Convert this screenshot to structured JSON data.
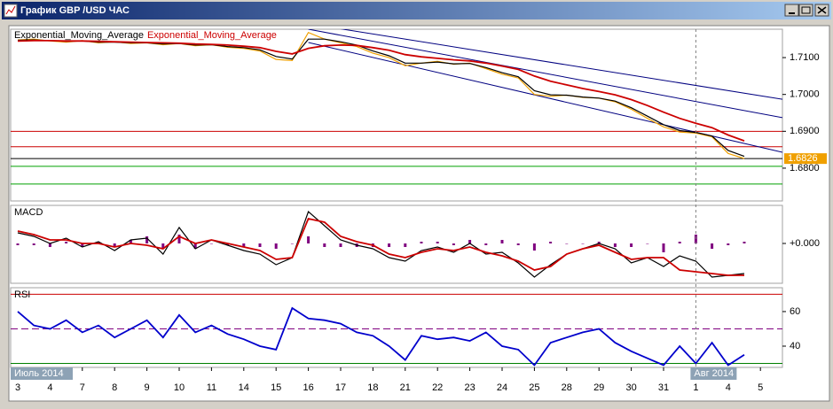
{
  "window": {
    "title": "График GBP /USD ЧАС"
  },
  "chart_data": [
    {
      "type": "line",
      "categories": [
        "3",
        null,
        "4",
        null,
        "7",
        null,
        "8",
        null,
        "9",
        null,
        "10",
        null,
        "11",
        null,
        "14",
        null,
        "15",
        null,
        "16",
        null,
        "17",
        null,
        "18",
        null,
        "21",
        null,
        "22",
        null,
        "23",
        null,
        "24",
        null,
        "25",
        null,
        "28",
        null,
        "29",
        null,
        "30",
        null,
        "31",
        null,
        "1",
        null,
        "4",
        null,
        "5",
        null
      ],
      "month_labels": [
        "Июль 2014",
        null,
        null,
        null,
        null,
        null,
        null,
        null,
        null,
        null,
        null,
        null,
        null,
        null,
        null,
        null,
        null,
        null,
        null,
        null,
        null,
        null,
        null,
        null,
        null,
        null,
        null,
        null,
        null,
        null,
        null,
        null,
        null,
        null,
        null,
        null,
        null,
        null,
        null,
        null,
        null,
        null,
        "Авг 2014",
        null,
        null,
        null,
        null,
        null
      ],
      "ylim": [
        1.6711,
        1.7177
      ],
      "yticks": [
        {
          "value": 1.71,
          "label": "1.7100"
        },
        {
          "value": 1.7,
          "label": "1.7000"
        },
        {
          "value": 1.69,
          "label": "1.6900"
        },
        {
          "value": 1.68,
          "label": "1.6800"
        }
      ],
      "series": [
        {
          "color": "#f0a000",
          "values": [
            1.7148,
            1.715,
            1.7145,
            1.7142,
            1.7146,
            1.714,
            1.7143,
            1.7138,
            1.714,
            1.7135,
            1.7138,
            1.7132,
            1.7135,
            1.7128,
            1.7125,
            1.7118,
            1.7095,
            1.7092,
            1.7168,
            1.715,
            1.714,
            1.713,
            1.7112,
            1.71,
            1.7078,
            1.7085,
            1.709,
            1.7082,
            1.7085,
            1.707,
            1.7055,
            1.7045,
            1.7,
            1.6995,
            1.6998,
            1.6992,
            1.699,
            1.698,
            1.696,
            1.6935,
            1.6912,
            1.6898,
            1.6895,
            1.6885,
            1.684,
            1.6826,
            null,
            null
          ]
        },
        {
          "name": "Exponential_Moving_Average",
          "color": "#000000",
          "values": [
            1.7147,
            1.7148,
            1.7146,
            1.7144,
            1.7145,
            1.7142,
            1.7142,
            1.714,
            1.714,
            1.7137,
            1.7138,
            1.7134,
            1.7135,
            1.713,
            1.7127,
            1.7121,
            1.7103,
            1.7096,
            1.715,
            1.715,
            1.7143,
            1.7134,
            1.7118,
            1.7105,
            1.7085,
            1.7085,
            1.7088,
            1.7083,
            1.7084,
            1.7073,
            1.7059,
            1.7048,
            1.701,
            1.6999,
            1.6998,
            1.6993,
            1.699,
            1.6982,
            1.6964,
            1.6941,
            1.6918,
            1.6902,
            1.6897,
            1.6887,
            1.6848,
            1.6832,
            null,
            null
          ]
        },
        {
          "name": "Exponential_Moving_Average",
          "color": "#cc0000",
          "values": [
            1.7145,
            1.7146,
            1.7146,
            1.7145,
            1.7145,
            1.7144,
            1.7143,
            1.7142,
            1.7141,
            1.714,
            1.7139,
            1.7137,
            1.7136,
            1.7134,
            1.7131,
            1.7127,
            1.7117,
            1.711,
            1.7125,
            1.7132,
            1.7134,
            1.7133,
            1.7127,
            1.712,
            1.7108,
            1.7102,
            1.7098,
            1.7094,
            1.7091,
            1.7085,
            1.7077,
            1.7068,
            1.705,
            1.7036,
            1.7026,
            1.7016,
            1.7008,
            1.6999,
            1.6986,
            1.697,
            1.6952,
            1.6935,
            1.6922,
            1.691,
            1.689,
            1.6874,
            null,
            null
          ]
        }
      ],
      "channel_lines": [
        {
          "start": 1.7192,
          "end": 1.6987,
          "color": "#000080"
        },
        {
          "start": 1.7177,
          "end": 1.6937,
          "color": "#000080"
        },
        {
          "start": 1.7141,
          "end": 1.6843,
          "color": "#000080"
        }
      ],
      "levels": [
        {
          "value": 1.69,
          "color": "#cc0000"
        },
        {
          "value": 1.6858,
          "color": "#cc0000"
        },
        {
          "value": 1.6805,
          "color": "#00a000"
        },
        {
          "value": 1.6757,
          "color": "#00a000"
        }
      ],
      "current_price": 1.6826
    },
    {
      "type": "line",
      "title": "MACD",
      "ylim": [
        -0.00225,
        0.00215
      ],
      "yticks": [
        {
          "value": 0,
          "label": "+0.000"
        }
      ],
      "series": [
        {
          "kind": "histogram",
          "color": "#800080",
          "values": [
            -0.0001,
            -0.0001,
            -0.0002,
            0.0001,
            -0.0002,
            0.0001,
            -0.0002,
            0.0002,
            0.0004,
            -0.0003,
            0.0005,
            -0.0003,
            0.0,
            -0.0001,
            -0.0002,
            -0.0002,
            -0.0003,
            0.0,
            0.0004,
            -0.0002,
            -0.0002,
            -0.0002,
            -0.0002,
            -0.0002,
            -0.0002,
            0.0001,
            0.0001,
            -0.0001,
            0.0002,
            -0.0001,
            0.0002,
            -0.0001,
            -0.0004,
            0.0001,
            0.0,
            0.0,
            0.0001,
            -0.0002,
            -0.0002,
            0.0,
            -0.0005,
            0.0001,
            0.0005,
            -0.0003,
            -0.0001,
            0.0001,
            null,
            null
          ]
        },
        {
          "color": "#000000",
          "values": [
            0.0006,
            0.0004,
            0.0,
            0.0003,
            -0.0002,
            0.0001,
            -0.0004,
            0.0002,
            0.0003,
            -0.0006,
            0.0009,
            -0.0003,
            0.0002,
            -0.0001,
            -0.0004,
            -0.0006,
            -0.0012,
            -0.0008,
            0.0018,
            0.001,
            0.0002,
            -0.0001,
            -0.0003,
            -0.0008,
            -0.001,
            -0.0004,
            -0.0002,
            -0.0005,
            0.0,
            -0.0006,
            -0.0005,
            -0.0011,
            -0.0019,
            -0.0012,
            -0.0006,
            -0.0003,
            0.0,
            -0.0003,
            -0.0011,
            -0.0008,
            -0.0013,
            -0.0007,
            -0.001,
            -0.0019,
            -0.0018,
            -0.0017,
            null,
            null
          ]
        },
        {
          "color": "#cc0000",
          "values": [
            0.0007,
            0.0005,
            0.0002,
            0.0002,
            0.0,
            0.0,
            -0.0002,
            0.0,
            -0.0001,
            -0.0003,
            0.0004,
            0.0,
            0.0002,
            0.0,
            -0.0002,
            -0.0004,
            -0.0009,
            -0.0008,
            0.0014,
            0.0012,
            0.0004,
            0.0001,
            -0.0001,
            -0.0006,
            -0.0008,
            -0.0005,
            -0.0003,
            -0.0004,
            -0.0002,
            -0.0005,
            -0.0007,
            -0.001,
            -0.0015,
            -0.0013,
            -0.0006,
            -0.0003,
            -0.0001,
            -0.0005,
            -0.0009,
            -0.0008,
            -0.0008,
            -0.0015,
            -0.0016,
            -0.0017,
            -0.0018,
            -0.0018,
            null,
            null
          ]
        }
      ]
    },
    {
      "type": "line",
      "title": "RSI",
      "ylim": [
        27.7,
        73.8
      ],
      "yticks": [
        60,
        40
      ],
      "levels": [
        {
          "value": 70,
          "color": "#cc0000"
        },
        {
          "value": 50,
          "color": "#800080",
          "dashed": true
        },
        {
          "value": 30,
          "color": "#008000"
        }
      ],
      "series": [
        {
          "color": "#0000cc",
          "values": [
            60,
            52,
            50,
            55,
            48,
            52,
            45,
            50,
            55,
            45,
            58,
            48,
            52,
            47,
            44,
            40,
            38,
            62,
            56,
            55,
            53,
            48,
            46,
            40,
            32,
            46,
            44,
            45,
            43,
            48,
            40,
            38,
            29,
            42,
            45,
            48,
            50,
            42,
            37,
            33,
            29,
            40,
            30,
            42,
            29,
            35,
            null,
            null
          ]
        }
      ]
    }
  ]
}
